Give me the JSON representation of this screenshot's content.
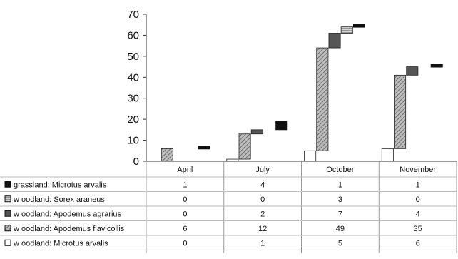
{
  "chart_data": {
    "type": "bar",
    "stacked": true,
    "categories": [
      "April",
      "July",
      "October",
      "November"
    ],
    "ylim": [
      0,
      70
    ],
    "yticks": [
      0,
      10,
      20,
      30,
      40,
      50,
      60,
      70
    ],
    "series": [
      {
        "name": "grassland: Microtus arvalis",
        "values": [
          1,
          4,
          1,
          1
        ],
        "fill": "black"
      },
      {
        "name": "w oodland: Sorex araneus",
        "values": [
          0,
          0,
          3,
          0
        ],
        "fill": "hlines"
      },
      {
        "name": "w oodland: Apodemus agrarius",
        "values": [
          0,
          2,
          7,
          4
        ],
        "fill": "dark"
      },
      {
        "name": "w oodland: Apodemus flavicollis",
        "values": [
          6,
          12,
          49,
          35
        ],
        "fill": "diag"
      },
      {
        "name": "w oodland: Microtus arvalis",
        "values": [
          0,
          1,
          5,
          6
        ],
        "fill": "white"
      }
    ]
  }
}
